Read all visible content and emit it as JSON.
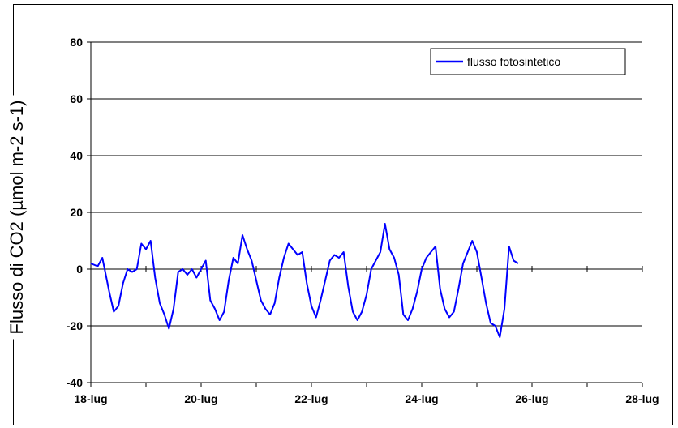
{
  "chart_data": {
    "type": "line",
    "title": "",
    "xlabel": "",
    "ylabel": "Flusso di CO2 (µmol m-2 s-1)",
    "ylim": [
      -40,
      80
    ],
    "yticks": [
      -40,
      -20,
      0,
      20,
      40,
      60,
      80
    ],
    "xlim": [
      "18-lug",
      "28-lug"
    ],
    "xticks": [
      "18-lug",
      "20-lug",
      "22-lug",
      "24-lug",
      "26-lug",
      "28-lug"
    ],
    "grid": true,
    "legend_position": "top-right",
    "series": [
      {
        "name": "flusso fotosintetico",
        "color": "#0000ff",
        "points": [
          [
            "18-lug 00:00",
            2
          ],
          [
            "18-lug 03:00",
            1
          ],
          [
            "18-lug 05:00",
            4
          ],
          [
            "18-lug 08:00",
            -8
          ],
          [
            "18-lug 10:00",
            -15
          ],
          [
            "18-lug 12:00",
            -13
          ],
          [
            "18-lug 14:00",
            -5
          ],
          [
            "18-lug 16:00",
            0
          ],
          [
            "18-lug 18:00",
            -1
          ],
          [
            "18-lug 20:00",
            0
          ],
          [
            "18-lug 22:00",
            9
          ],
          [
            "19-lug 00:00",
            7
          ],
          [
            "19-lug 02:00",
            10
          ],
          [
            "19-lug 04:00",
            -3
          ],
          [
            "19-lug 06:00",
            -12
          ],
          [
            "19-lug 08:00",
            -16
          ],
          [
            "19-lug 10:00",
            -21
          ],
          [
            "19-lug 12:00",
            -14
          ],
          [
            "19-lug 14:00",
            -1
          ],
          [
            "19-lug 16:00",
            0
          ],
          [
            "19-lug 18:00",
            -2
          ],
          [
            "19-lug 20:00",
            0
          ],
          [
            "19-lug 22:00",
            -3
          ],
          [
            "20-lug 00:00",
            0
          ],
          [
            "20-lug 02:00",
            3
          ],
          [
            "20-lug 04:00",
            -11
          ],
          [
            "20-lug 06:00",
            -14
          ],
          [
            "20-lug 08:00",
            -18
          ],
          [
            "20-lug 10:00",
            -15
          ],
          [
            "20-lug 12:00",
            -4
          ],
          [
            "20-lug 14:00",
            4
          ],
          [
            "20-lug 16:00",
            2
          ],
          [
            "20-lug 18:00",
            12
          ],
          [
            "20-lug 20:00",
            7
          ],
          [
            "20-lug 22:00",
            3
          ],
          [
            "21-lug 00:00",
            -4
          ],
          [
            "21-lug 02:00",
            -11
          ],
          [
            "21-lug 04:00",
            -14
          ],
          [
            "21-lug 06:00",
            -16
          ],
          [
            "21-lug 08:00",
            -12
          ],
          [
            "21-lug 10:00",
            -3
          ],
          [
            "21-lug 12:00",
            4
          ],
          [
            "21-lug 14:00",
            9
          ],
          [
            "21-lug 16:00",
            7
          ],
          [
            "21-lug 18:00",
            5
          ],
          [
            "21-lug 20:00",
            6
          ],
          [
            "21-lug 22:00",
            -5
          ],
          [
            "22-lug 00:00",
            -13
          ],
          [
            "22-lug 02:00",
            -17
          ],
          [
            "22-lug 04:00",
            -11
          ],
          [
            "22-lug 06:00",
            -4
          ],
          [
            "22-lug 08:00",
            3
          ],
          [
            "22-lug 10:00",
            5
          ],
          [
            "22-lug 12:00",
            4
          ],
          [
            "22-lug 14:00",
            6
          ],
          [
            "22-lug 16:00",
            -6
          ],
          [
            "22-lug 18:00",
            -15
          ],
          [
            "22-lug 20:00",
            -18
          ],
          [
            "22-lug 22:00",
            -15
          ],
          [
            "23-lug 00:00",
            -9
          ],
          [
            "23-lug 02:00",
            0
          ],
          [
            "23-lug 04:00",
            3
          ],
          [
            "23-lug 06:00",
            6
          ],
          [
            "23-lug 08:00",
            16
          ],
          [
            "23-lug 10:00",
            7
          ],
          [
            "23-lug 12:00",
            4
          ],
          [
            "23-lug 14:00",
            -2
          ],
          [
            "23-lug 16:00",
            -16
          ],
          [
            "23-lug 18:00",
            -18
          ],
          [
            "23-lug 20:00",
            -14
          ],
          [
            "23-lug 22:00",
            -8
          ],
          [
            "24-lug 00:00",
            0
          ],
          [
            "24-lug 02:00",
            4
          ],
          [
            "24-lug 04:00",
            6
          ],
          [
            "24-lug 06:00",
            8
          ],
          [
            "24-lug 08:00",
            -7
          ],
          [
            "24-lug 10:00",
            -14
          ],
          [
            "24-lug 12:00",
            -17
          ],
          [
            "24-lug 14:00",
            -15
          ],
          [
            "24-lug 16:00",
            -7
          ],
          [
            "24-lug 18:00",
            2
          ],
          [
            "24-lug 20:00",
            6
          ],
          [
            "24-lug 22:00",
            10
          ],
          [
            "25-lug 00:00",
            6
          ],
          [
            "25-lug 02:00",
            -3
          ],
          [
            "25-lug 04:00",
            -12
          ],
          [
            "25-lug 06:00",
            -19
          ],
          [
            "25-lug 08:00",
            -20
          ],
          [
            "25-lug 10:00",
            -24
          ],
          [
            "25-lug 12:00",
            -14
          ],
          [
            "25-lug 14:00",
            8
          ],
          [
            "25-lug 16:00",
            3
          ],
          [
            "25-lug 18:00",
            2
          ]
        ]
      }
    ]
  }
}
